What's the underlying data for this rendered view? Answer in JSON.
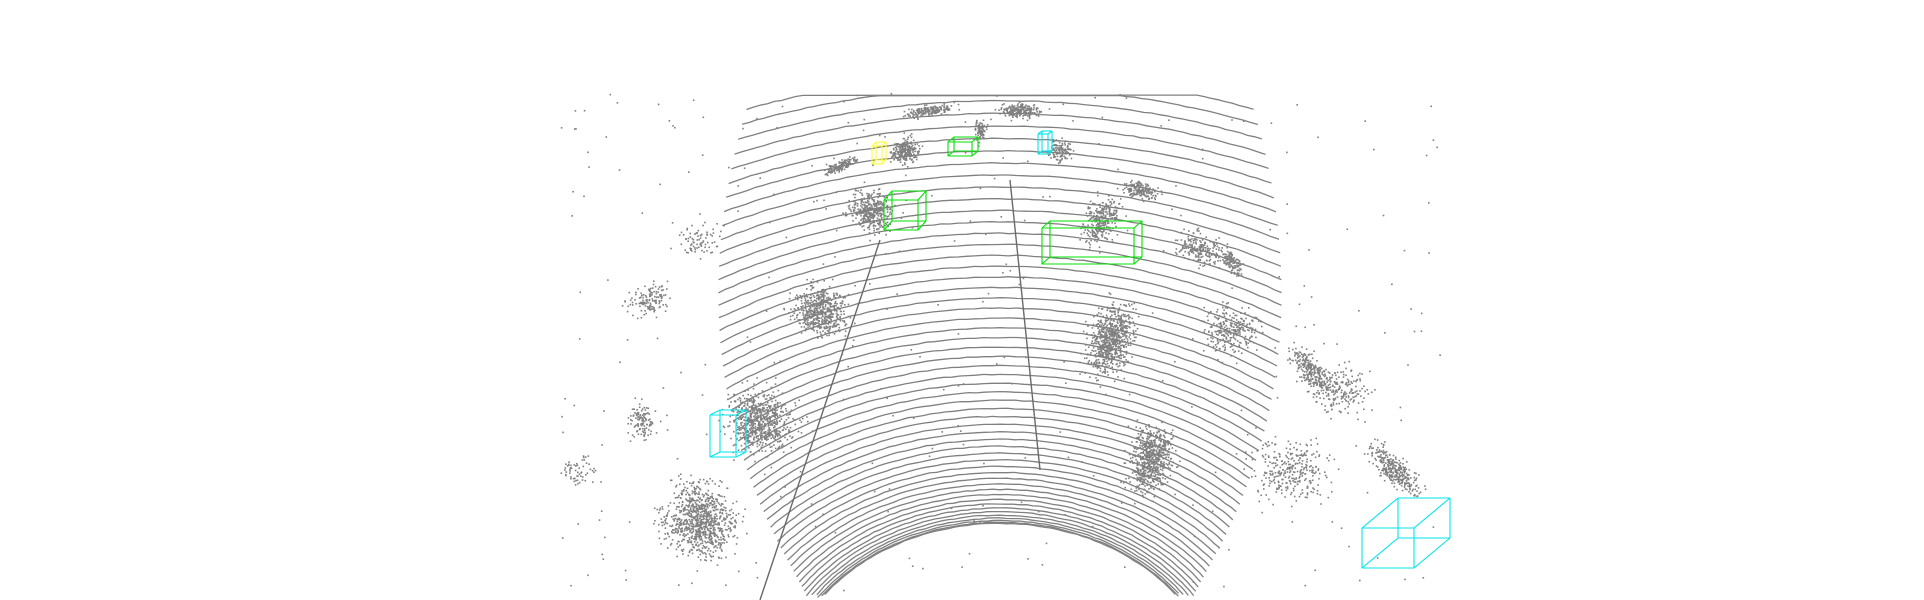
{
  "scene": {
    "type": "lidar-point-cloud-render",
    "background_color": "#ffffff",
    "point_color": "#808080",
    "class_colors": {
      "car": "#00e000",
      "pedestrian": "#00e5ee",
      "cyclist": "#ffff33"
    },
    "boxes": [
      {
        "name": "car-box-far-center",
        "category_color_key": "car"
      },
      {
        "name": "car-box-mid-left",
        "category_color_key": "car"
      },
      {
        "name": "car-box-mid-right",
        "category_color_key": "car"
      },
      {
        "name": "pedestrian-box-far",
        "category_color_key": "pedestrian"
      },
      {
        "name": "pedestrian-box-left",
        "category_color_key": "pedestrian"
      },
      {
        "name": "pedestrian-box-near-right",
        "category_color_key": "pedestrian"
      },
      {
        "name": "cyclist-box-far-left",
        "category_color_key": "cyclist"
      }
    ]
  }
}
